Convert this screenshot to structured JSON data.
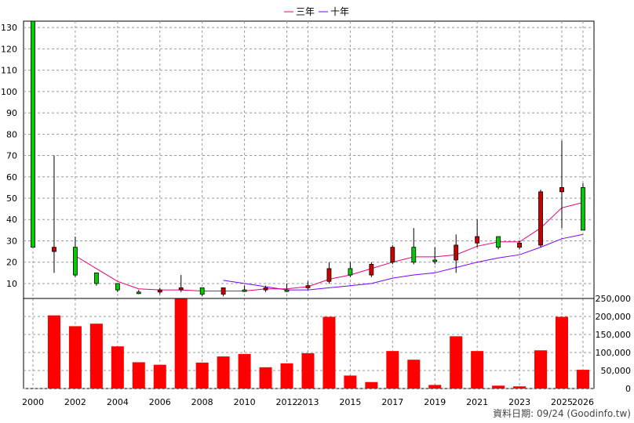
{
  "chart_data": {
    "type": "candlestick+bar",
    "legend": [
      {
        "label": "三年",
        "color": "#e6007e"
      },
      {
        "label": "十年",
        "color": "#7a00ff"
      }
    ],
    "footer": "資料日期: 09/24  (Goodinfo.tw)",
    "x_labels": [
      "2000",
      "2002",
      "2004",
      "2006",
      "2008",
      "2010",
      "2012",
      "2013",
      "2015",
      "2017",
      "2019",
      "2021",
      "2023",
      "2025",
      "2026"
    ],
    "price_axis": {
      "ticks": [
        10,
        20,
        30,
        40,
        50,
        60,
        70,
        80,
        90,
        100,
        110,
        120,
        130
      ],
      "ylim": [
        3,
        133
      ]
    },
    "volume_axis": {
      "ticks": [
        "0",
        "50,000",
        "100,000",
        "150,000",
        "200,000",
        "250,000"
      ],
      "ylim": [
        0,
        250000
      ]
    },
    "candles": [
      {
        "year": 2000,
        "open": 27,
        "close": 133,
        "high": 133,
        "low": 27
      },
      {
        "year": 2001,
        "open": 27,
        "close": 25,
        "high": 70,
        "low": 15
      },
      {
        "year": 2002,
        "open": 14,
        "close": 27,
        "high": 32,
        "low": 13
      },
      {
        "year": 2003,
        "open": 10,
        "close": 15,
        "high": 15,
        "low": 9
      },
      {
        "year": 2004,
        "open": 7,
        "close": 10,
        "high": 10,
        "low": 6
      },
      {
        "year": 2005,
        "open": 6,
        "close": 6,
        "high": 7,
        "low": 5
      },
      {
        "year": 2006,
        "open": 7,
        "close": 6,
        "high": 8,
        "low": 5
      },
      {
        "year": 2007,
        "open": 8,
        "close": 7,
        "high": 14,
        "low": 6
      },
      {
        "year": 2008,
        "open": 5,
        "close": 8,
        "high": 8,
        "low": 4
      },
      {
        "year": 2009,
        "open": 8,
        "close": 5,
        "high": 8,
        "low": 4
      },
      {
        "year": 2010,
        "open": 7,
        "close": 7,
        "high": 9,
        "low": 6
      },
      {
        "year": 2011,
        "open": 8,
        "close": 7,
        "high": 9,
        "low": 6
      },
      {
        "year": 2012,
        "open": 7,
        "close": 7,
        "high": 10,
        "low": 6
      },
      {
        "year": 2013,
        "open": 9,
        "close": 8,
        "high": 11,
        "low": 7
      },
      {
        "year": 2014,
        "open": 17,
        "close": 11,
        "high": 20,
        "low": 10
      },
      {
        "year": 2015,
        "open": 14,
        "close": 17,
        "high": 20,
        "low": 13
      },
      {
        "year": 2016,
        "open": 19,
        "close": 14,
        "high": 20,
        "low": 13
      },
      {
        "year": 2017,
        "open": 27,
        "close": 20,
        "high": 28,
        "low": 19
      },
      {
        "year": 2018,
        "open": 20,
        "close": 27,
        "high": 36,
        "low": 19
      },
      {
        "year": 2019,
        "open": 21,
        "close": 21,
        "high": 27,
        "low": 19
      },
      {
        "year": 2020,
        "open": 28,
        "close": 21,
        "high": 33,
        "low": 15
      },
      {
        "year": 2021,
        "open": 32,
        "close": 29,
        "high": 40,
        "low": 27
      },
      {
        "year": 2022,
        "open": 27,
        "close": 32,
        "high": 32,
        "low": 26
      },
      {
        "year": 2023,
        "open": 29,
        "close": 27,
        "high": 30,
        "low": 26
      },
      {
        "year": 2024,
        "open": 53,
        "close": 28,
        "high": 54,
        "low": 27
      },
      {
        "year": 2025,
        "open": 55,
        "close": 53,
        "high": 77,
        "low": 36
      },
      {
        "year": 2026,
        "open": 35,
        "close": 55,
        "high": 57,
        "low": 35
      }
    ],
    "ma_3yr": [
      {
        "year": 2002,
        "value": 23
      },
      {
        "year": 2003,
        "value": 17
      },
      {
        "year": 2004,
        "value": 11
      },
      {
        "year": 2005,
        "value": 7.5
      },
      {
        "year": 2006,
        "value": 7
      },
      {
        "year": 2007,
        "value": 7
      },
      {
        "year": 2008,
        "value": 6.5
      },
      {
        "year": 2009,
        "value": 6.5
      },
      {
        "year": 2010,
        "value": 6.5
      },
      {
        "year": 2011,
        "value": 7.5
      },
      {
        "year": 2012,
        "value": 7.5
      },
      {
        "year": 2013,
        "value": 8.5
      },
      {
        "year": 2014,
        "value": 12
      },
      {
        "year": 2015,
        "value": 14
      },
      {
        "year": 2016,
        "value": 17
      },
      {
        "year": 2017,
        "value": 20
      },
      {
        "year": 2018,
        "value": 22.5
      },
      {
        "year": 2019,
        "value": 22.5
      },
      {
        "year": 2020,
        "value": 23.5
      },
      {
        "year": 2021,
        "value": 27.5
      },
      {
        "year": 2022,
        "value": 29.5
      },
      {
        "year": 2023,
        "value": 29.5
      },
      {
        "year": 2024,
        "value": 36
      },
      {
        "year": 2025,
        "value": 45.5
      },
      {
        "year": 2026,
        "value": 48
      }
    ],
    "ma_10yr": [
      {
        "year": 2009,
        "value": 11.5
      },
      {
        "year": 2010,
        "value": 10
      },
      {
        "year": 2011,
        "value": 8.5
      },
      {
        "year": 2012,
        "value": 7
      },
      {
        "year": 2013,
        "value": 7
      },
      {
        "year": 2014,
        "value": 8
      },
      {
        "year": 2015,
        "value": 9
      },
      {
        "year": 2016,
        "value": 10
      },
      {
        "year": 2017,
        "value": 12.5
      },
      {
        "year": 2018,
        "value": 14
      },
      {
        "year": 2019,
        "value": 15
      },
      {
        "year": 2020,
        "value": 17.5
      },
      {
        "year": 2021,
        "value": 20
      },
      {
        "year": 2022,
        "value": 22
      },
      {
        "year": 2023,
        "value": 23.5
      },
      {
        "year": 2024,
        "value": 27
      },
      {
        "year": 2025,
        "value": 31
      },
      {
        "year": 2026,
        "value": 33
      }
    ],
    "volume": [
      {
        "year": 2000,
        "value": 0
      },
      {
        "year": 2001,
        "value": 203000
      },
      {
        "year": 2002,
        "value": 173000
      },
      {
        "year": 2003,
        "value": 180000
      },
      {
        "year": 2004,
        "value": 117000
      },
      {
        "year": 2005,
        "value": 73000
      },
      {
        "year": 2006,
        "value": 66000
      },
      {
        "year": 2007,
        "value": 251000
      },
      {
        "year": 2008,
        "value": 72000
      },
      {
        "year": 2009,
        "value": 89000
      },
      {
        "year": 2010,
        "value": 96000
      },
      {
        "year": 2011,
        "value": 59000
      },
      {
        "year": 2012,
        "value": 70000
      },
      {
        "year": 2013,
        "value": 98000
      },
      {
        "year": 2014,
        "value": 199000
      },
      {
        "year": 2015,
        "value": 36000
      },
      {
        "year": 2016,
        "value": 18000
      },
      {
        "year": 2017,
        "value": 104000
      },
      {
        "year": 2018,
        "value": 80000
      },
      {
        "year": 2019,
        "value": 10000
      },
      {
        "year": 2020,
        "value": 145000
      },
      {
        "year": 2021,
        "value": 104000
      },
      {
        "year": 2022,
        "value": 8000
      },
      {
        "year": 2023,
        "value": 6000
      },
      {
        "year": 2024,
        "value": 106000
      },
      {
        "year": 2025,
        "value": 199000
      },
      {
        "year": 2026,
        "value": 52000
      }
    ],
    "colors": {
      "up": "#00cc00",
      "down": "#cc0000",
      "volume": "#ff0000",
      "grid": "#999999"
    }
  }
}
